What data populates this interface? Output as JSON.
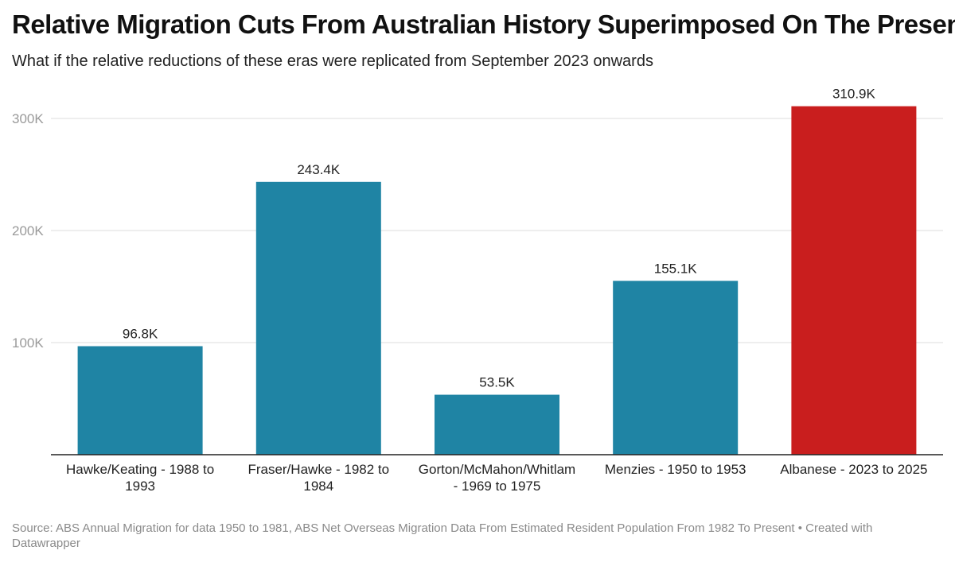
{
  "header": {
    "title": "Relative Migration Cuts From Australian History Superimposed On The Present",
    "subtitle": "What if the relative reductions of these eras were replicated from September 2023 onwards"
  },
  "chart_data": {
    "type": "bar",
    "categories": [
      "Hawke/Keating - 1988 to 1993",
      "Fraser/Hawke - 1982 to 1984",
      "Gorton/McMahon/Whitlam - 1969 to 1975",
      "Menzies - 1950 to 1953",
      "Albanese - 2023 to 2025"
    ],
    "values": [
      96800,
      243400,
      53500,
      155100,
      310900
    ],
    "data_labels": [
      "96.8K",
      "243.4K",
      "53.5K",
      "155.1K",
      "310.9K"
    ],
    "colors": [
      "#1f84a4",
      "#1f84a4",
      "#1f84a4",
      "#1f84a4",
      "#c91e1e"
    ],
    "yticks": [
      100000,
      200000,
      300000
    ],
    "ytick_labels": [
      "100K",
      "200K",
      "300K"
    ],
    "ylim": [
      0,
      330000
    ],
    "grid": true
  },
  "footer": {
    "source": "Source: ABS Annual Migration for data 1950 to 1981, ABS Net Overseas Migration Data From Estimated Resident Population From 1982 To Present • Created with Datawrapper"
  }
}
